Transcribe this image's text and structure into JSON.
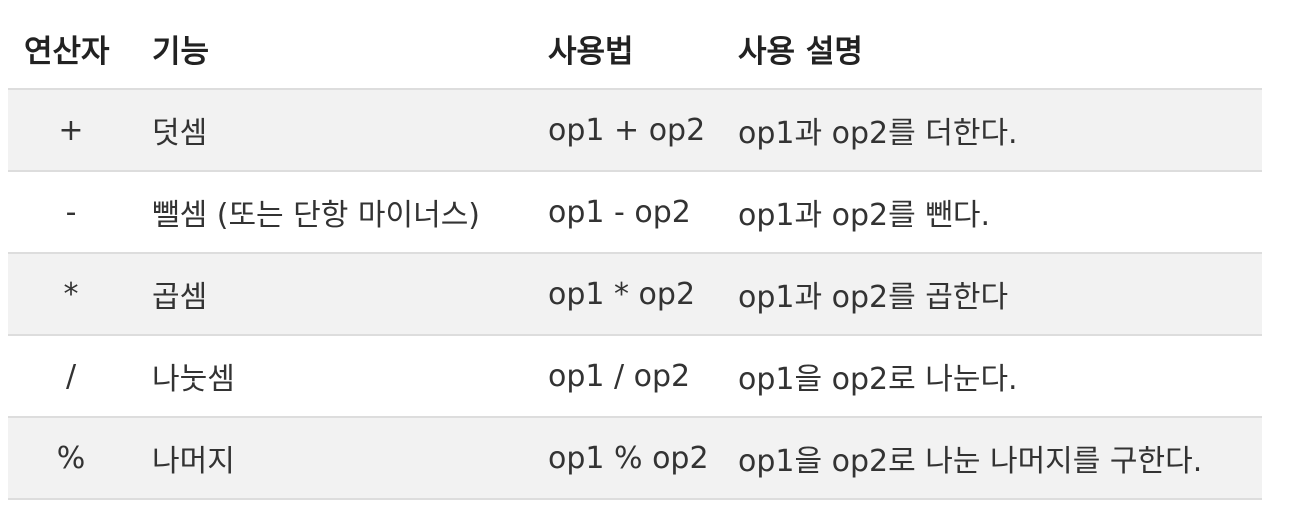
{
  "table": {
    "headers": {
      "operator": "연산자",
      "function": "기능",
      "usage": "사용법",
      "description": "사용 설명"
    },
    "rows": [
      {
        "operator": "+",
        "function": "덧셈",
        "usage": "op1 + op2",
        "description": "op1과 op2를 더한다."
      },
      {
        "operator": "-",
        "function": "뺄셈 (또는 단항 마이너스)",
        "usage": "op1 - op2",
        "description": "op1과 op2를 뺀다."
      },
      {
        "operator": "*",
        "function": "곱셈",
        "usage": "op1 * op2",
        "description": "op1과 op2를 곱한다"
      },
      {
        "operator": "/",
        "function": "나눗셈",
        "usage": "op1 / op2",
        "description": "op1을 op2로 나눈다."
      },
      {
        "operator": "%",
        "function": "나머지",
        "usage": "op1 % op2",
        "description": "op1을 op2로 나눈 나머지를 구한다."
      }
    ]
  }
}
